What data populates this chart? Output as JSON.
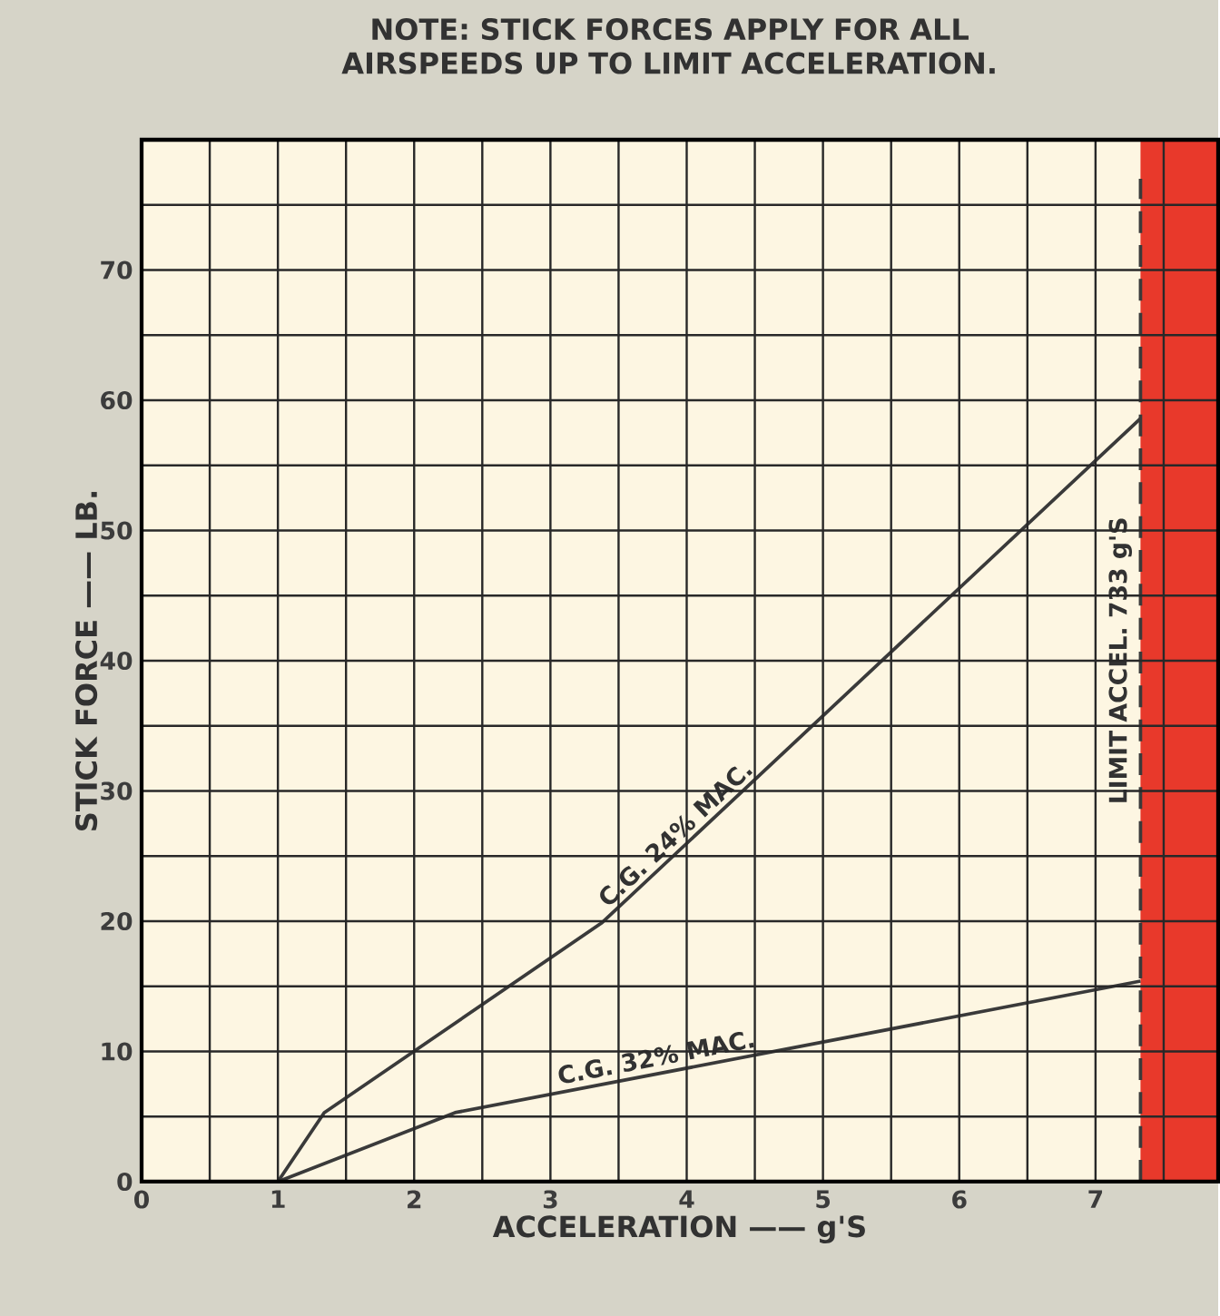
{
  "chart_data": {
    "type": "line",
    "title": "NOTE: STICK FORCES APPLY FOR ALL AIRSPEEDS UP TO LIMIT ACCELERATION.",
    "xlabel": "ACCELERATION —— g'S",
    "ylabel": "STICK FORCE —— LB.",
    "series": [
      {
        "color": "#3a3a3a",
        "x": [
          1,
          1.34,
          3.38,
          7.33
        ],
        "values": [
          0,
          5.3,
          19.9,
          58.6
        ]
      },
      {
        "color": "#3a3a3a",
        "x": [
          1,
          2.3,
          7.33
        ],
        "values": [
          0,
          5.3,
          15.4
        ]
      }
    ],
    "annotations": [
      {
        "text": "C.G. 24% MAC.",
        "x": 4.0,
        "y": 25.8
      },
      {
        "text": "C.G. 32% MAC.",
        "x": 3.8,
        "y": 8.3
      }
    ],
    "ref_lines": [
      {
        "axis": "x",
        "value": 7.33,
        "label": "LIMIT ACCEL. 733 g'S",
        "line_style": "dashed",
        "color": "#3a3a3a"
      }
    ],
    "bands": [
      {
        "axis": "x",
        "from": 7.33,
        "to": 7.9,
        "color": "#e8392b"
      }
    ],
    "xlim": [
      0,
      7.9
    ],
    "ylim": [
      0,
      80
    ],
    "xticks": [
      0,
      {
        "value": 0.5,
        "label": null
      },
      1,
      {
        "value": 1.5,
        "label": null
      },
      2,
      {
        "value": 2.5,
        "label": null
      },
      3,
      {
        "value": 3.5,
        "label": null
      },
      4,
      {
        "value": 4.5,
        "label": null
      },
      5,
      {
        "value": 5.5,
        "label": null
      },
      6,
      {
        "value": 6.5,
        "label": null
      },
      7,
      {
        "value": 7.5,
        "label": null
      }
    ],
    "yticks": [
      0,
      {
        "value": 5,
        "label": null
      },
      10,
      {
        "value": 15,
        "label": null
      },
      20,
      {
        "value": 25,
        "label": null
      },
      30,
      {
        "value": 35,
        "label": null
      },
      40,
      {
        "value": 45,
        "label": null
      },
      50,
      {
        "value": 55,
        "label": null
      },
      60,
      {
        "value": 65,
        "label": null
      },
      70,
      {
        "value": 75,
        "label": null
      },
      {
        "value": 80,
        "label": null
      }
    ],
    "grid": true,
    "marker": "none",
    "line_style": "solid"
  }
}
